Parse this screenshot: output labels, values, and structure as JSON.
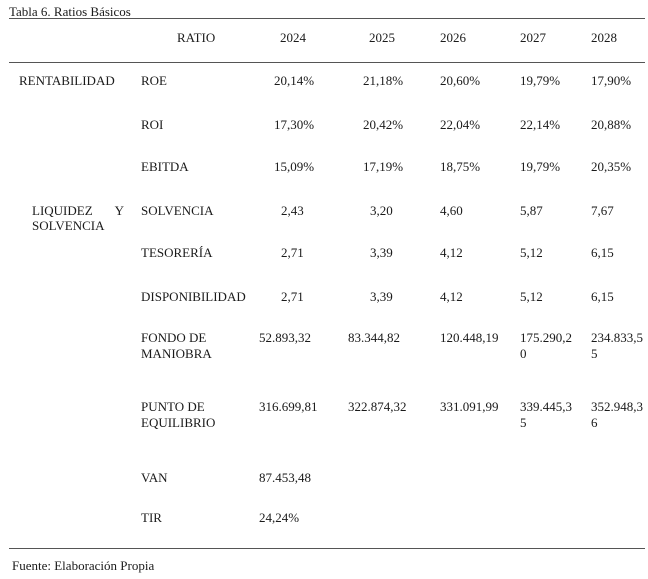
{
  "caption": "Tabla 6.  Ratios Básicos",
  "header": {
    "ratio": "RATIO",
    "years": [
      "2024",
      "2025",
      "2026",
      "2027",
      "2028"
    ]
  },
  "categories": {
    "rentabilidad": "RENTABILIDAD",
    "liquidez_word1": "LIQUIDEZ",
    "liquidez_word2": "Y",
    "liquidez_line2": "SOLVENCIA"
  },
  "rows": [
    {
      "name": "ROE",
      "values": [
        "20,14%",
        "21,18%",
        "20,60%",
        "19,79%",
        "17,90%"
      ]
    },
    {
      "name": "ROI",
      "values": [
        "17,30%",
        "20,42%",
        "22,04%",
        "22,14%",
        "20,88%"
      ]
    },
    {
      "name": "EBITDA",
      "values": [
        "15,09%",
        "17,19%",
        "18,75%",
        "19,79%",
        "20,35%"
      ]
    },
    {
      "name": "SOLVENCIA",
      "values": [
        "2,43",
        "3,20",
        "4,60",
        "5,87",
        "7,67"
      ]
    },
    {
      "name": "TESORERÍA",
      "values": [
        "2,71",
        "3,39",
        "4,12",
        "5,12",
        "6,15"
      ]
    },
    {
      "name": "DISPONIBILIDAD",
      "values": [
        "2,71",
        "3,39",
        "4,12",
        "5,12",
        "6,15"
      ]
    },
    {
      "name_line1": "FONDO  DE",
      "name_line2": "MANIOBRA",
      "values": [
        "52.893,32",
        "83.344,82",
        "120.448,19"
      ],
      "v2027_line1": "175.290,2",
      "v2027_line2": "0",
      "v2028_line1": "234.833,5",
      "v2028_line2": "5"
    },
    {
      "name_line1": "PUNTO  DE",
      "name_line2": "EQUILIBRIO",
      "values": [
        "316.699,81",
        "322.874,32",
        "331.091,99"
      ],
      "v2027_line1": "339.445,3",
      "v2027_line2": "5",
      "v2028_line1": "352.948,3",
      "v2028_line2": "6"
    },
    {
      "name": "VAN",
      "values": [
        "87.453,48"
      ]
    },
    {
      "name": "TIR",
      "values": [
        "24,24%"
      ]
    }
  ],
  "footer": "Fuente: Elaboración Propia"
}
